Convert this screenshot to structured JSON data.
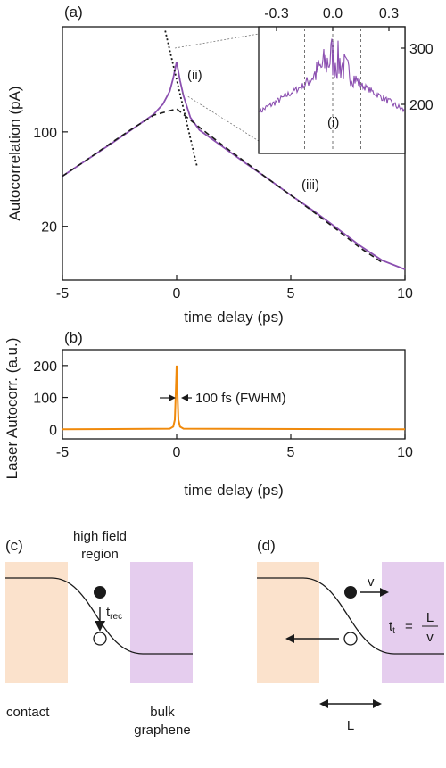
{
  "colors": {
    "purple": "#8b4fb0",
    "orange": "#f08a0c",
    "contact_fill": "#fbe2cc",
    "graphene_fill": "#e5cdee",
    "ink": "#1a1a1a"
  },
  "chart_data": [
    {
      "type": "line",
      "panel": "(a)",
      "xlabel": "time delay (ps)",
      "ylabel": "Autocorrelation (pA)",
      "x_ticks": [
        -5,
        0,
        5,
        10
      ],
      "y_scale": "log",
      "y_ticks": [
        100,
        20
      ],
      "xlim": [
        -5,
        10
      ],
      "ylim": [
        8,
        600
      ],
      "series": [
        {
          "style": "solid-purple",
          "x": [
            -5,
            -4,
            -3,
            -2,
            -1,
            -0.6,
            -0.3,
            -0.15,
            0,
            0.15,
            0.3,
            0.6,
            1,
            2,
            3,
            4,
            5,
            6,
            7,
            8,
            9,
            10
          ],
          "y": [
            47,
            61,
            79,
            103,
            135,
            160,
            200,
            250,
            330,
            240,
            185,
            128,
            103,
            78,
            59,
            45,
            34,
            26,
            19.5,
            14.5,
            11.2,
            9.6
          ]
        },
        {
          "style": "dashed-black",
          "x": [
            -5,
            -4,
            -3,
            -2,
            -1,
            0,
            1,
            2,
            3,
            4,
            5,
            6,
            7,
            8,
            9
          ],
          "y": [
            47,
            61,
            80,
            104,
            133,
            148,
            108,
            80,
            60,
            45,
            34,
            25.5,
            19,
            14,
            10.8
          ]
        },
        {
          "style": "dotted-black",
          "x": [
            -0.5,
            0.9
          ],
          "y": [
            560,
            55
          ]
        }
      ],
      "annotations": [
        "(ii)",
        "(iii)"
      ],
      "inset": {
        "x_ticks": [
          "-0.3",
          "0.0",
          "0.3"
        ],
        "y_ticks": [
          "300",
          "200"
        ],
        "annotation": "(i)",
        "dashed_markers": [
          -0.15,
          0.0,
          0.15
        ]
      }
    },
    {
      "type": "line",
      "panel": "(b)",
      "xlabel": "time delay (ps)",
      "ylabel_lines": [
        "Laser Autocorr. (a.u.)"
      ],
      "x_ticks": [
        -5,
        0,
        5,
        10
      ],
      "y_ticks": [
        0,
        100,
        200
      ],
      "xlim": [
        -5,
        10
      ],
      "ylim": [
        -30,
        250
      ],
      "series": [
        {
          "style": "solid-orange",
          "x": [
            -5,
            -0.3,
            -0.15,
            -0.08,
            -0.04,
            0,
            0.04,
            0.08,
            0.15,
            0.3,
            10
          ],
          "y": [
            0,
            2,
            8,
            30,
            110,
            200,
            110,
            30,
            8,
            2,
            0
          ]
        }
      ],
      "annotation": "100 fs (FWHM)"
    }
  ],
  "panels": {
    "c": {
      "label": "(c)",
      "top_text_1": "high field",
      "top_text_2": "region",
      "trec_main": "t",
      "trec_sub": "rec",
      "bottom_left": "contact",
      "bottom_right_1": "bulk",
      "bottom_right_2": "graphene"
    },
    "d": {
      "label": "(d)",
      "v_label": "v",
      "tt_main": "t",
      "tt_sub": "t",
      "tt_eq": "=",
      "frac_num": "L",
      "frac_den": "v",
      "l_label": "L"
    }
  }
}
